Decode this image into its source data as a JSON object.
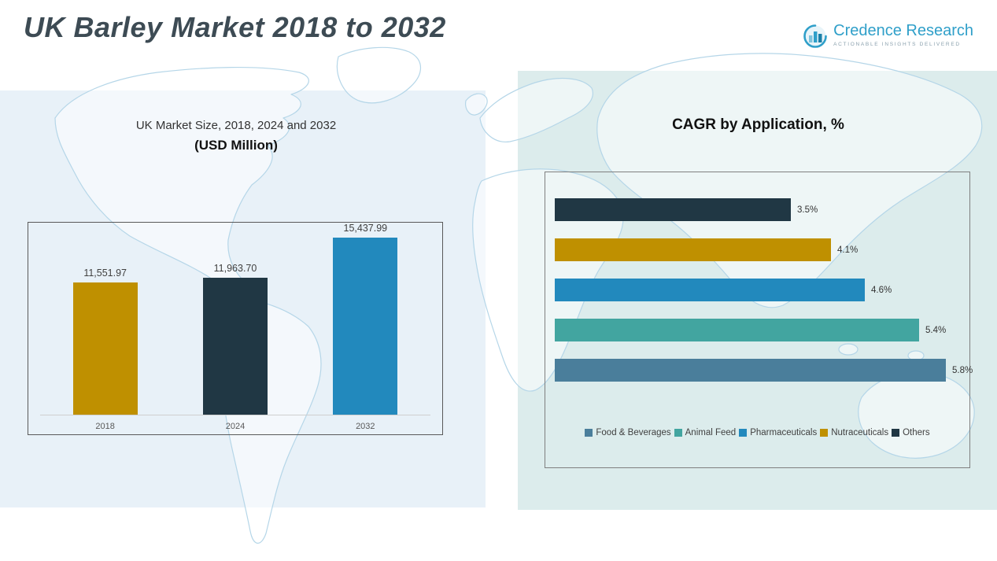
{
  "header": {
    "title": "UK Barley Market 2018 to 2032"
  },
  "logo": {
    "name": "Credence Research",
    "tagline": "Actionable Insights Delivered"
  },
  "charts": {
    "market_size": {
      "title": "UK Market Size, 2018, 2024 and 2032",
      "subtitle": "(USD Million)"
    },
    "cagr": {
      "title": "CAGR by Application, %"
    }
  },
  "chart_data": [
    {
      "type": "bar",
      "title": "UK Market Size, 2018, 2024 and 2032 (USD Million)",
      "categories": [
        "2018",
        "2024",
        "2032"
      ],
      "values": [
        11551.97,
        11963.7,
        15437.99
      ],
      "value_labels": [
        "11,551.97",
        "11,963.70",
        "15,437.99"
      ],
      "colors": [
        "#bf9000",
        "#203744",
        "#2289bd"
      ],
      "ylabel": "USD Million",
      "ylim": [
        0,
        15437.99
      ],
      "grid": false,
      "legend_position": "none"
    },
    {
      "type": "bar",
      "orientation": "horizontal",
      "title": "CAGR by Application, %",
      "categories": [
        "Others",
        "Nutraceuticals",
        "Pharmaceuticals",
        "Animal Feed",
        "Food & Beverages"
      ],
      "values": [
        3.5,
        4.1,
        4.6,
        5.4,
        5.8
      ],
      "value_labels": [
        "3.5%",
        "4.1%",
        "4.6%",
        "5.4%",
        "5.8%"
      ],
      "colors": [
        "#203744",
        "#bf9000",
        "#2289bd",
        "#42a5a0",
        "#4a7e9b"
      ],
      "xlim": [
        0,
        6
      ],
      "grid": false,
      "legend_position": "bottom",
      "legend": [
        {
          "label": "Food & Beverages",
          "color": "#4a7e9b"
        },
        {
          "label": "Animal Feed",
          "color": "#42a5a0"
        },
        {
          "label": "Pharmaceuticals",
          "color": "#2289bd"
        },
        {
          "label": "Nutraceuticals",
          "color": "#bf9000"
        },
        {
          "label": "Others",
          "color": "#203744"
        }
      ]
    }
  ],
  "colors": {
    "accent_teal": "#2f9fc9",
    "panel_left_bg": "#e8f1f8",
    "panel_right_bg": "#dcecec",
    "gold": "#bf9000",
    "navy": "#203744",
    "blue": "#2289bd",
    "teal": "#42a5a0",
    "steel_blue": "#4a7e9b",
    "map_outline": "#b5d6e8"
  }
}
